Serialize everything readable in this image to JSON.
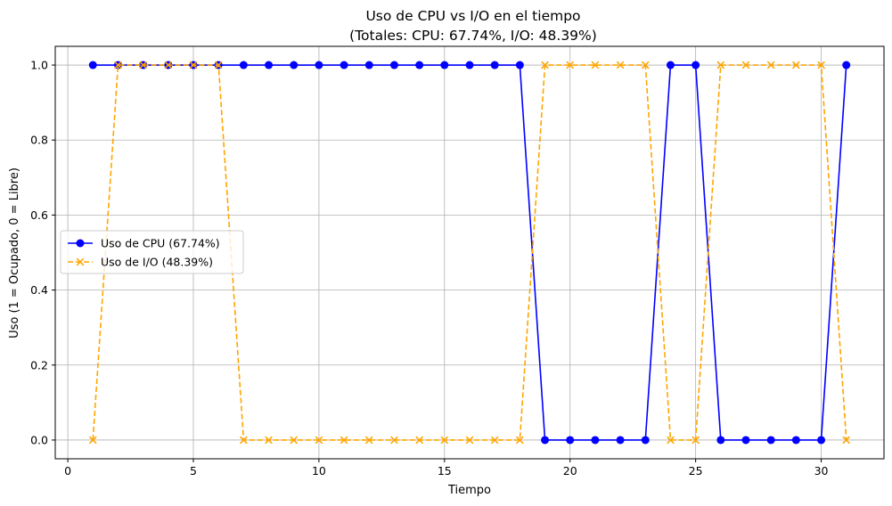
{
  "chart_data": {
    "type": "line",
    "title": "Uso de CPU vs I/O en el tiempo",
    "subtitle": "(Totales: CPU: 67.74%, I/O: 48.39%)",
    "xlabel": "Tiempo",
    "ylabel": "Uso (1 = Ocupado, 0 = Libre)",
    "xlim": [
      -0.5,
      32.5
    ],
    "ylim": [
      -0.05,
      1.05
    ],
    "xticks": [
      0,
      5,
      10,
      15,
      20,
      25,
      30
    ],
    "yticks": [
      0.0,
      0.2,
      0.4,
      0.6,
      0.8,
      1.0
    ],
    "xtick_labels": [
      "0",
      "5",
      "10",
      "15",
      "20",
      "25",
      "30"
    ],
    "ytick_labels": [
      "0.0",
      "0.2",
      "0.4",
      "0.6",
      "0.8",
      "1.0"
    ],
    "grid": true,
    "legend_position": "center-left",
    "x": [
      1,
      2,
      3,
      4,
      5,
      6,
      7,
      8,
      9,
      10,
      11,
      12,
      13,
      14,
      15,
      16,
      17,
      18,
      19,
      20,
      21,
      22,
      23,
      24,
      25,
      26,
      27,
      28,
      29,
      30,
      31
    ],
    "series": [
      {
        "name": "Uso de CPU (67.74%)",
        "color": "#0000ff",
        "line_style": "solid",
        "marker": "circle",
        "values": [
          1,
          1,
          1,
          1,
          1,
          1,
          1,
          1,
          1,
          1,
          1,
          1,
          1,
          1,
          1,
          1,
          1,
          1,
          0,
          0,
          0,
          0,
          0,
          1,
          1,
          0,
          0,
          0,
          0,
          0,
          1
        ]
      },
      {
        "name": "Uso de I/O (48.39%)",
        "color": "#ffa500",
        "line_style": "dashed",
        "marker": "x",
        "values": [
          0,
          1,
          1,
          1,
          1,
          1,
          0,
          0,
          0,
          0,
          0,
          0,
          0,
          0,
          0,
          0,
          0,
          0,
          1,
          1,
          1,
          1,
          1,
          0,
          0,
          1,
          1,
          1,
          1,
          1,
          0
        ]
      }
    ]
  }
}
